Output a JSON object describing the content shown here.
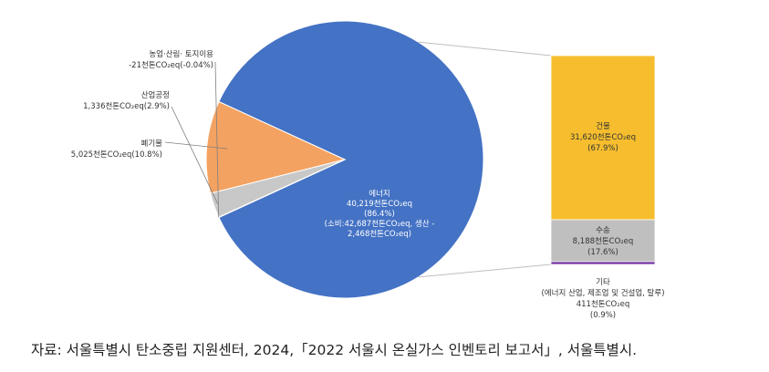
{
  "chart_data": {
    "type": "pie",
    "title": "",
    "slices": [
      {
        "name": "에너지",
        "value": 86.4,
        "color": "#4472C4",
        "label_lines": [
          "에너지",
          "40,219천톤CO₂eq",
          "(86.4%)",
          "(소비:42,687천톤CO₂eq, 생산 -",
          "2,468천톤CO₂eq)"
        ]
      },
      {
        "name": "폐기물",
        "value": 10.8,
        "color": "#F4A261",
        "label_lines": [
          "폐기물",
          "5,025천톤CO₂eq(10.8%)"
        ]
      },
      {
        "name": "산업공정",
        "value": 2.9,
        "color": "#C8C8C8",
        "label_lines": [
          "산업공정",
          "1,336천톤CO₂eq(2.9%)"
        ]
      },
      {
        "name": "농업·산림· 토지이용",
        "value": 0.04,
        "color": "#7F7F7F",
        "label_lines": [
          "농업·산림· 토지이용",
          "-21천톤CO₂eq(-0.04%)"
        ]
      }
    ],
    "breakdown": {
      "parent": "에너지",
      "type": "stacked-bar",
      "segments": [
        {
          "name": "건물",
          "value": 67.9,
          "color": "#F6BE2E",
          "label_lines": [
            "건물",
            "31,620천톤CO₂eq",
            "(67.9%)"
          ]
        },
        {
          "name": "수송",
          "value": 17.6,
          "color": "#BFBFBF",
          "label_lines": [
            "수송",
            "8,188천톤CO₂eq",
            "(17.6%)"
          ]
        },
        {
          "name": "기타",
          "value": 0.9,
          "color": "#7030A0",
          "label_lines": [
            "기타",
            "(에너지 산업, 제조업 및 건설업, 탈루)",
            "411천톤CO₂eq",
            "(0.9%)"
          ]
        }
      ]
    }
  },
  "source_text": "자료: 서울특별시 탄소중립 지원센터, 2024,「2022 서울시 온실가스 인벤토리 보고서」, 서울특별시."
}
